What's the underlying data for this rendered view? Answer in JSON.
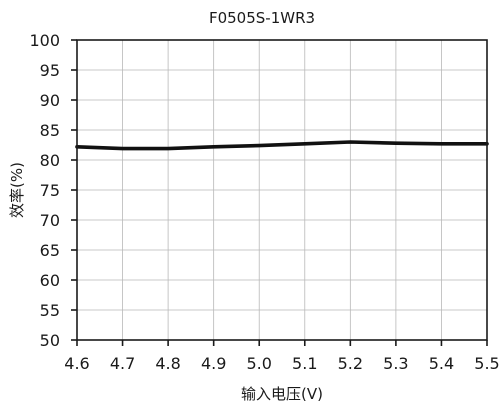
{
  "chart_data": {
    "type": "line",
    "title": "F0505S-1WR3",
    "xlabel": "输入电压(V)",
    "ylabel": "效率(%)",
    "xlim": [
      4.6,
      5.5
    ],
    "ylim": [
      50,
      100
    ],
    "x_ticks": [
      "4.6",
      "4.7",
      "4.8",
      "4.9",
      "5.0",
      "5.1",
      "5.2",
      "5.3",
      "5.4",
      "5.5"
    ],
    "y_ticks": [
      "100",
      "95",
      "90",
      "85",
      "80",
      "75",
      "70",
      "65",
      "60",
      "55",
      "50"
    ],
    "grid": true,
    "legend": "none",
    "series": [
      {
        "color": "#111111",
        "x": [
          4.6,
          4.7,
          4.8,
          4.9,
          5.0,
          5.1,
          5.2,
          5.3,
          5.4,
          5.5
        ],
        "y": [
          82.2,
          81.9,
          81.9,
          82.2,
          82.4,
          82.7,
          83.0,
          82.8,
          82.7,
          82.7
        ]
      }
    ]
  }
}
